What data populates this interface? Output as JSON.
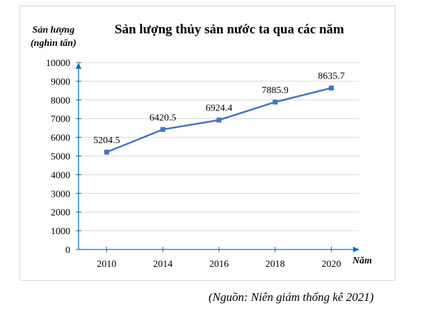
{
  "chart_data": {
    "type": "line",
    "title": "Sản lượng thủy sản nước ta qua các năm",
    "ylabel_line1": "Sản lượng",
    "ylabel_line2": "(nghìn tấn)",
    "xlabel": "Năm",
    "categories": [
      "2010",
      "2014",
      "2016",
      "2018",
      "2020"
    ],
    "values": [
      5204.5,
      6420.5,
      6924.4,
      7885.9,
      8635.7
    ],
    "data_labels": [
      "5204.5",
      "6420.5",
      "6924.4",
      "7885.9",
      "8635.7"
    ],
    "ylim": [
      0,
      10000
    ],
    "yticks": [
      0,
      1000,
      2000,
      3000,
      4000,
      5000,
      6000,
      7000,
      8000,
      9000,
      10000
    ],
    "grid": true,
    "legend": "none",
    "colors": {
      "line": "#4472c4",
      "axis": "#0070c0",
      "grid": "#d9d9d9"
    }
  },
  "source": "(Nguồn: Niên giám thống kê 2021)"
}
